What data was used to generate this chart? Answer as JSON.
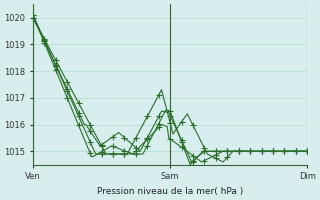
{
  "xlabel": "Pression niveau de la mer( hPa )",
  "ylim": [
    1014.5,
    1020.5
  ],
  "yticks": [
    1015,
    1016,
    1017,
    1018,
    1019,
    1020
  ],
  "xtick_labels": [
    "Ven",
    "Sam",
    "Dim"
  ],
  "xtick_positions": [
    0,
    96,
    192
  ],
  "total_points": 193,
  "bg_color": "#d8eeee",
  "grid_color": "#aaddcc",
  "line_color": "#2a6e2a",
  "marker_color": "#2a6e2a"
}
